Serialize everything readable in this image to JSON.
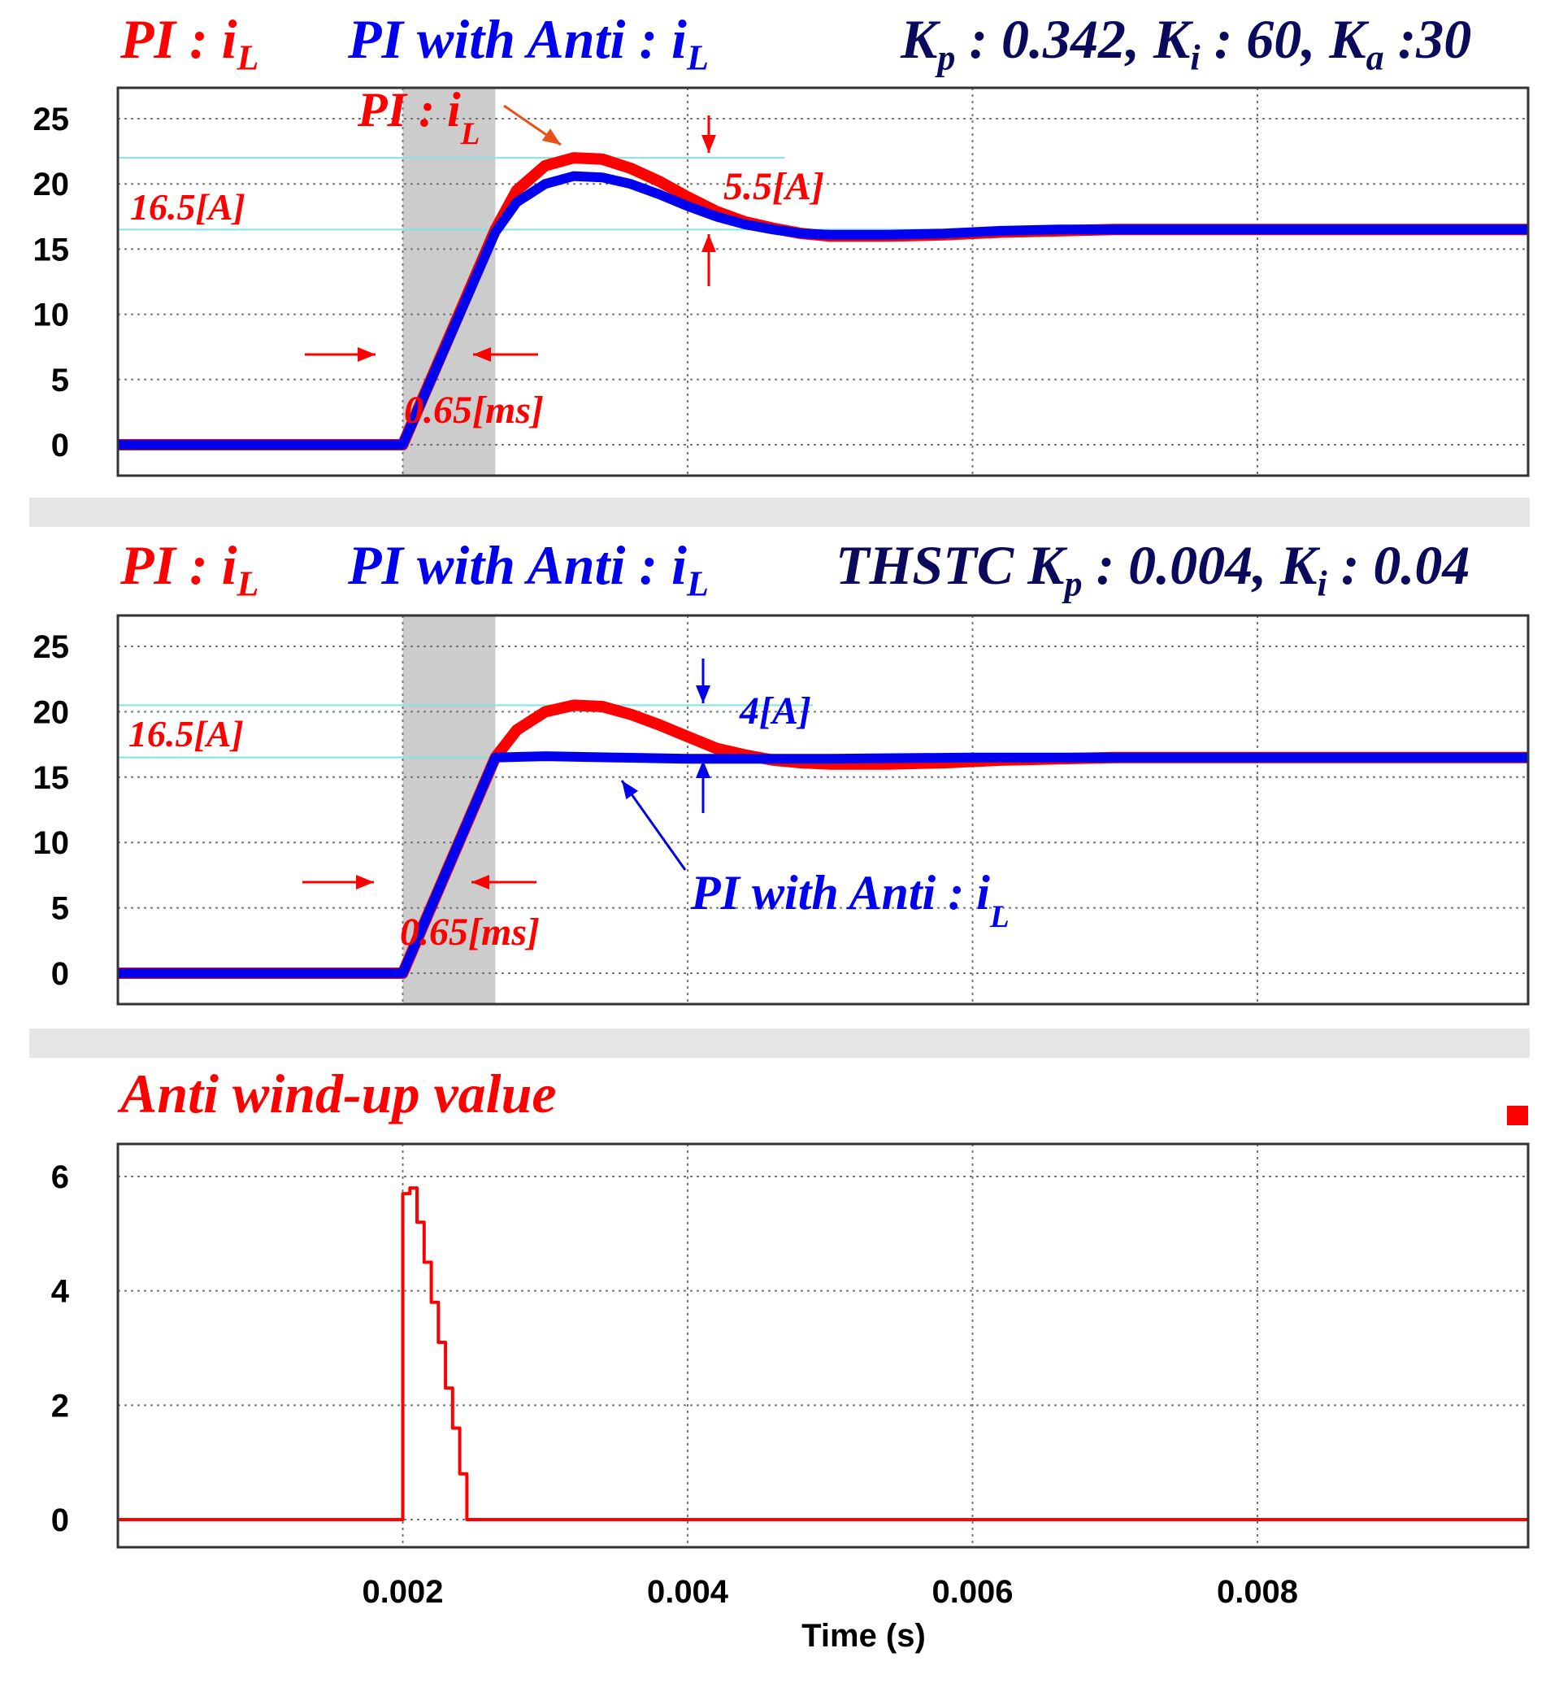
{
  "colors": {
    "pi": "#ff0000",
    "pi_anti": "#0000ee",
    "params": "#0a0a5c",
    "ref_line": "#7fe6e6",
    "shade": "#cccccc"
  },
  "panel1": {
    "title_pi": "PI : i",
    "title_pi_sub": "L",
    "title_anti": "PI with Anti : i",
    "title_anti_sub": "L",
    "params": {
      "kp": "K",
      "kp_sub": "p",
      "kp_val": " : 0.342, ",
      "ki": "K",
      "ki_sub": "i",
      "ki_val": " : 60, ",
      "ka": "K",
      "ka_sub": "a",
      "ka_val": " :30"
    },
    "annotations": {
      "current_label": "16.5[A]",
      "overshoot_label": "5.5[A]",
      "time_label": "0.65[ms]",
      "pi_label": "PI : i",
      "pi_label_sub": "L"
    }
  },
  "panel2": {
    "title_pi": "PI : i",
    "title_pi_sub": "L",
    "title_anti": "PI with Anti : i",
    "title_anti_sub": "L",
    "params": {
      "prefix": "THSTC  ",
      "kp": "K",
      "kp_sub": "p",
      "kp_val": " : 0.004, ",
      "ki": "K",
      "ki_sub": "i",
      "ki_val": " : 0.04"
    },
    "annotations": {
      "current_label": "16.5[A]",
      "overshoot_label": "4[A]",
      "time_label": "0.65[ms]",
      "anti_label": "PI with Anti : i",
      "anti_label_sub": "L"
    }
  },
  "panel3": {
    "title": "Anti wind-up value"
  },
  "chart_data": [
    {
      "type": "line",
      "ylim": [
        0,
        25
      ],
      "xlim": [
        0,
        0.0099
      ],
      "yticks": [
        "0",
        "5",
        "10",
        "15",
        "20",
        "25"
      ],
      "grid": true,
      "shaded_interval": [
        0.002,
        0.00265
      ],
      "reference_lines": [
        16.5,
        22
      ],
      "series": [
        {
          "name": "PI : iL",
          "x": [
            0,
            0.002,
            0.00265,
            0.0028,
            0.003,
            0.0032,
            0.0034,
            0.0036,
            0.0038,
            0.004,
            0.0042,
            0.0044,
            0.0046,
            0.0048,
            0.005,
            0.0054,
            0.0058,
            0.0062,
            0.0066,
            0.007,
            0.008,
            0.009,
            0.0099
          ],
          "y": [
            0,
            0,
            16.5,
            19.5,
            21.4,
            22.0,
            21.9,
            21.2,
            20.2,
            19.0,
            17.9,
            17.1,
            16.6,
            16.2,
            16.0,
            16.0,
            16.1,
            16.3,
            16.4,
            16.5,
            16.5,
            16.5,
            16.5
          ]
        },
        {
          "name": "PI with Anti : iL",
          "x": [
            0,
            0.002,
            0.00265,
            0.0028,
            0.003,
            0.0032,
            0.0034,
            0.0036,
            0.0038,
            0.004,
            0.0042,
            0.0044,
            0.0046,
            0.0048,
            0.005,
            0.0054,
            0.0058,
            0.0062,
            0.0066,
            0.007,
            0.008,
            0.009,
            0.0099
          ],
          "y": [
            0,
            0,
            16.3,
            18.6,
            20.0,
            20.6,
            20.5,
            20.0,
            19.2,
            18.3,
            17.5,
            16.9,
            16.5,
            16.2,
            16.1,
            16.1,
            16.2,
            16.4,
            16.5,
            16.5,
            16.5,
            16.5,
            16.5
          ]
        }
      ]
    },
    {
      "type": "line",
      "ylim": [
        0,
        25
      ],
      "xlim": [
        0,
        0.0099
      ],
      "yticks": [
        "0",
        "5",
        "10",
        "15",
        "20",
        "25"
      ],
      "grid": true,
      "shaded_interval": [
        0.002,
        0.00265
      ],
      "reference_lines": [
        16.5,
        20.5
      ],
      "series": [
        {
          "name": "PI : iL",
          "x": [
            0,
            0.002,
            0.00265,
            0.0028,
            0.003,
            0.0032,
            0.0034,
            0.0036,
            0.0038,
            0.004,
            0.0042,
            0.0044,
            0.0046,
            0.0048,
            0.005,
            0.0054,
            0.0058,
            0.0062,
            0.0066,
            0.007,
            0.008,
            0.009,
            0.0099
          ],
          "y": [
            0,
            0,
            16.5,
            18.6,
            20.0,
            20.5,
            20.4,
            19.8,
            19.0,
            18.1,
            17.2,
            16.7,
            16.3,
            16.1,
            16.0,
            16.0,
            16.1,
            16.3,
            16.4,
            16.5,
            16.5,
            16.5,
            16.5
          ]
        },
        {
          "name": "PI with Anti : iL",
          "x": [
            0,
            0.002,
            0.00265,
            0.003,
            0.0035,
            0.004,
            0.005,
            0.006,
            0.007,
            0.008,
            0.009,
            0.0099
          ],
          "y": [
            0,
            0,
            16.5,
            16.6,
            16.5,
            16.4,
            16.4,
            16.5,
            16.5,
            16.5,
            16.5,
            16.5
          ]
        }
      ]
    },
    {
      "type": "line",
      "ylim": [
        0,
        6
      ],
      "xlim": [
        0,
        0.0099
      ],
      "yticks": [
        "0",
        "2",
        "4",
        "6"
      ],
      "xticks": [
        "0.002",
        "0.004",
        "0.006",
        "0.008"
      ],
      "xlabel": "Time (s)",
      "grid": true,
      "series": [
        {
          "x": [
            0,
            0.002,
            0.002,
            0.00205,
            0.00205,
            0.0021,
            0.0021,
            0.00215,
            0.00215,
            0.0022,
            0.0022,
            0.00225,
            0.00225,
            0.0023,
            0.0023,
            0.00235,
            0.00235,
            0.0024,
            0.0024,
            0.00245,
            0.00245,
            0.0099
          ],
          "y": [
            0,
            0,
            5.7,
            5.7,
            5.8,
            5.8,
            5.2,
            5.2,
            4.5,
            4.5,
            3.8,
            3.8,
            3.1,
            3.1,
            2.3,
            2.3,
            1.6,
            1.6,
            0.8,
            0.8,
            0,
            0
          ]
        }
      ]
    }
  ]
}
